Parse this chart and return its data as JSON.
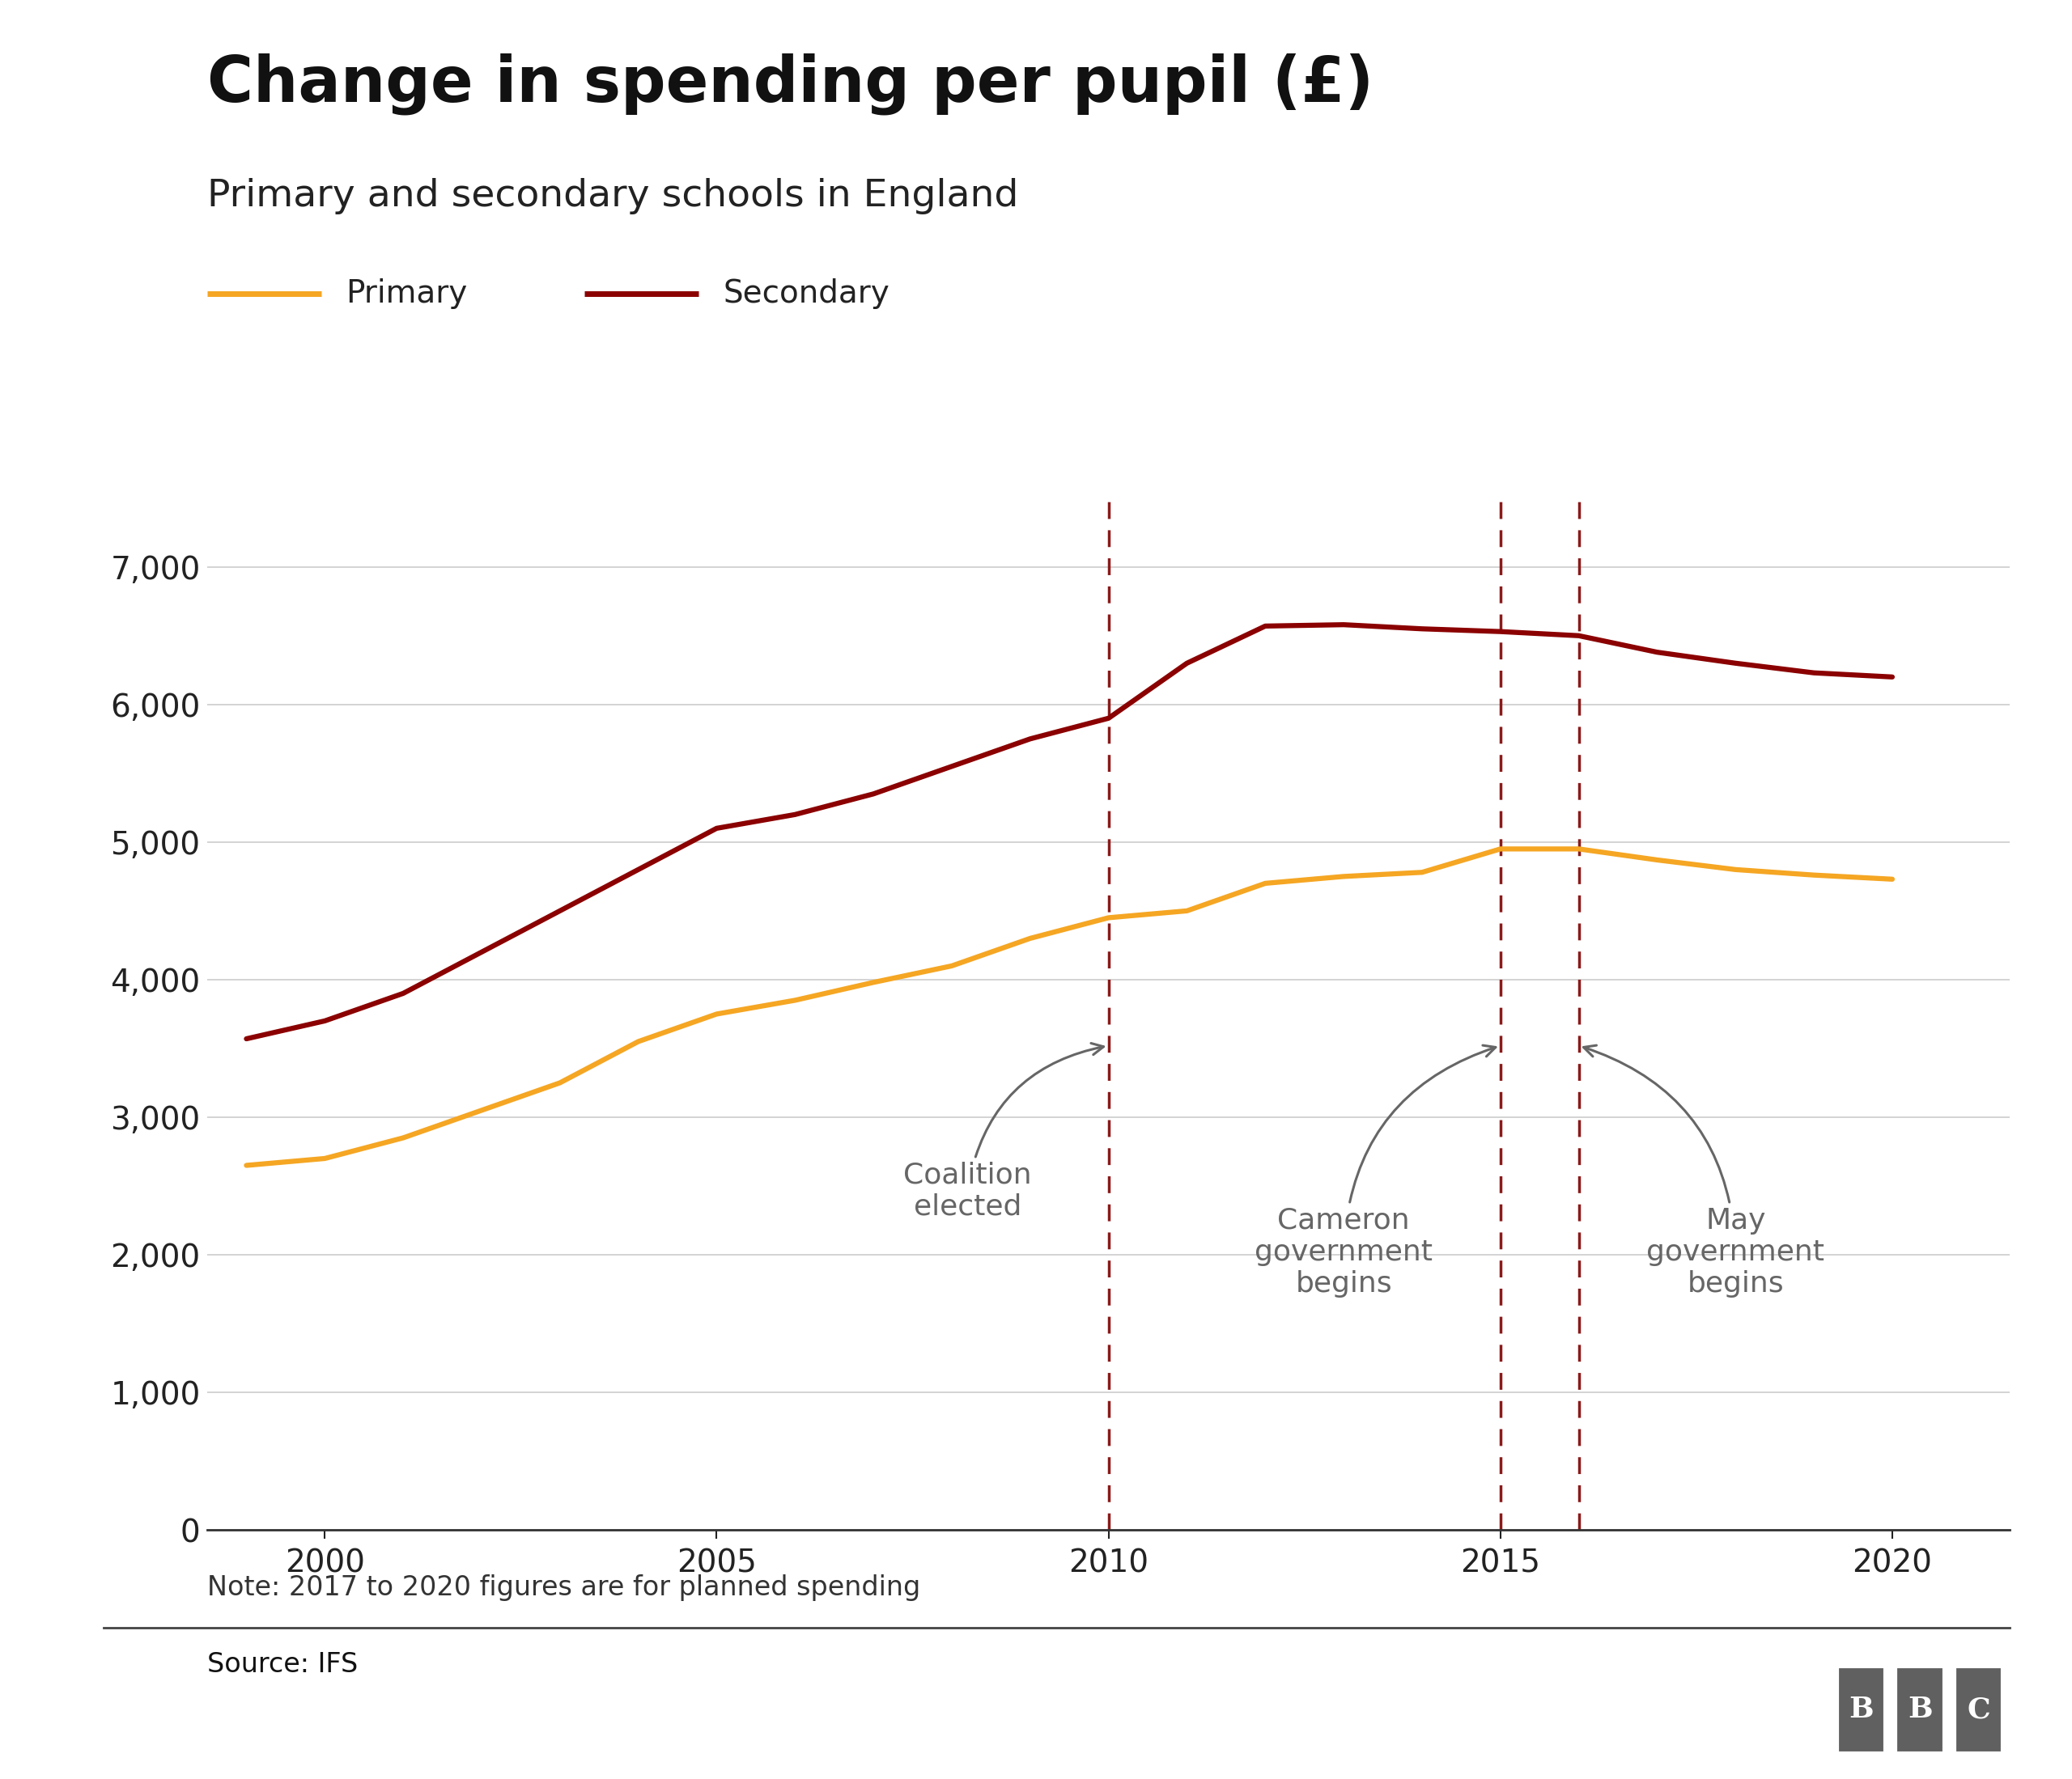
{
  "title": "Change in spending per pupil (£)",
  "subtitle": "Primary and secondary schools in England",
  "primary_years": [
    1999,
    2000,
    2001,
    2002,
    2003,
    2004,
    2005,
    2006,
    2007,
    2008,
    2009,
    2010,
    2011,
    2012,
    2013,
    2014,
    2015,
    2016,
    2017,
    2018,
    2019,
    2020
  ],
  "primary_values": [
    2650,
    2700,
    2850,
    3050,
    3250,
    3550,
    3750,
    3850,
    3980,
    4100,
    4300,
    4450,
    4500,
    4700,
    4750,
    4780,
    4950,
    4950,
    4870,
    4800,
    4760,
    4730
  ],
  "secondary_years": [
    1999,
    2000,
    2001,
    2002,
    2003,
    2004,
    2005,
    2006,
    2007,
    2008,
    2009,
    2010,
    2011,
    2012,
    2013,
    2014,
    2015,
    2016,
    2017,
    2018,
    2019,
    2020
  ],
  "secondary_values": [
    3570,
    3700,
    3900,
    4200,
    4500,
    4800,
    5100,
    5200,
    5350,
    5550,
    5750,
    5900,
    6300,
    6570,
    6580,
    6550,
    6530,
    6500,
    6380,
    6300,
    6230,
    6200
  ],
  "primary_color": "#F5A623",
  "secondary_color": "#8B0000",
  "vline_color": "#8B1A1A",
  "vlines": [
    2010,
    2015,
    2016
  ],
  "annotation_color": "#666666",
  "ylim": [
    0,
    7500
  ],
  "yticks": [
    0,
    1000,
    2000,
    3000,
    4000,
    5000,
    6000,
    7000
  ],
  "xlim": [
    1998.5,
    2021.5
  ],
  "xticks": [
    2000,
    2005,
    2010,
    2015,
    2020
  ],
  "note": "Note: 2017 to 2020 figures are for planned spending",
  "source": "Source: IFS",
  "background_color": "#FFFFFF",
  "grid_color": "#CCCCCC"
}
